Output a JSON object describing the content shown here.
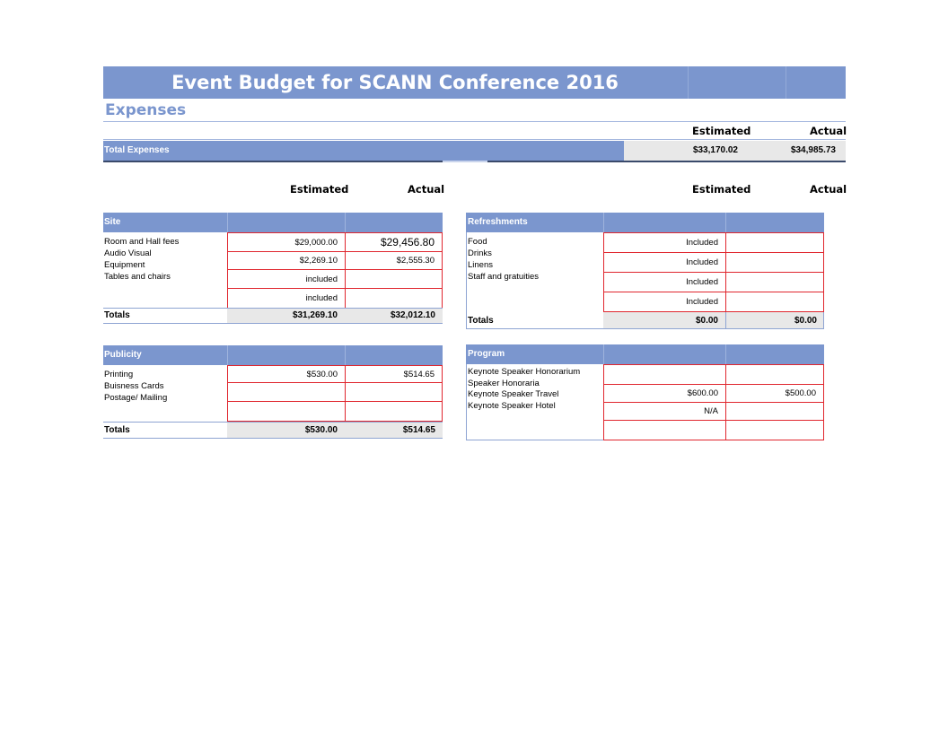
{
  "title": "Event Budget for SCANN Conference 2016",
  "section_title": "Expenses",
  "columns": {
    "estimated": "Estimated",
    "actual": "Actual"
  },
  "total_expenses": {
    "label": "Total Expenses",
    "estimated": "$33,170.02",
    "actual": "$34,985.73"
  },
  "site": {
    "header": "Site",
    "items": [
      "Room and Hall fees",
      "Audio Visual",
      "Equipment",
      "Tables and chairs"
    ],
    "rows": [
      {
        "estimated": "$29,000.00",
        "actual": "$29,456.80"
      },
      {
        "estimated": "$2,269.10",
        "actual": "$2,555.30"
      },
      {
        "estimated": "included",
        "actual": ""
      },
      {
        "estimated": "included",
        "actual": ""
      }
    ],
    "totals_label": "Totals",
    "total_estimated": "$31,269.10",
    "total_actual": "$32,012.10"
  },
  "refreshments": {
    "header": "Refreshments",
    "items": [
      "Food",
      "Drinks",
      "Linens",
      "Staff and gratuities"
    ],
    "rows": [
      {
        "estimated": "Included",
        "actual": ""
      },
      {
        "estimated": "Included",
        "actual": ""
      },
      {
        "estimated": "Included",
        "actual": ""
      },
      {
        "estimated": "Included",
        "actual": ""
      }
    ],
    "totals_label": "Totals",
    "total_estimated": "$0.00",
    "total_actual": "$0.00"
  },
  "publicity": {
    "header": "Publicity",
    "items": [
      "Printing",
      "Buisness Cards",
      "Postage/ Mailing"
    ],
    "rows": [
      {
        "estimated": "$530.00",
        "actual": "$514.65"
      },
      {
        "estimated": "",
        "actual": ""
      },
      {
        "estimated": "",
        "actual": ""
      }
    ],
    "totals_label": "Totals",
    "total_estimated": "$530.00",
    "total_actual": "$514.65"
  },
  "program": {
    "header": "Program",
    "items": [
      "Keynote Speaker Honorarium",
      "Speaker Honoraria",
      "Keynote Speaker Travel",
      "Keynote Speaker Hotel"
    ],
    "rows": [
      {
        "estimated": "",
        "actual": ""
      },
      {
        "estimated": "$600.00",
        "actual": "$500.00"
      },
      {
        "estimated": "N/A",
        "actual": ""
      },
      {
        "estimated": "",
        "actual": ""
      }
    ]
  }
}
